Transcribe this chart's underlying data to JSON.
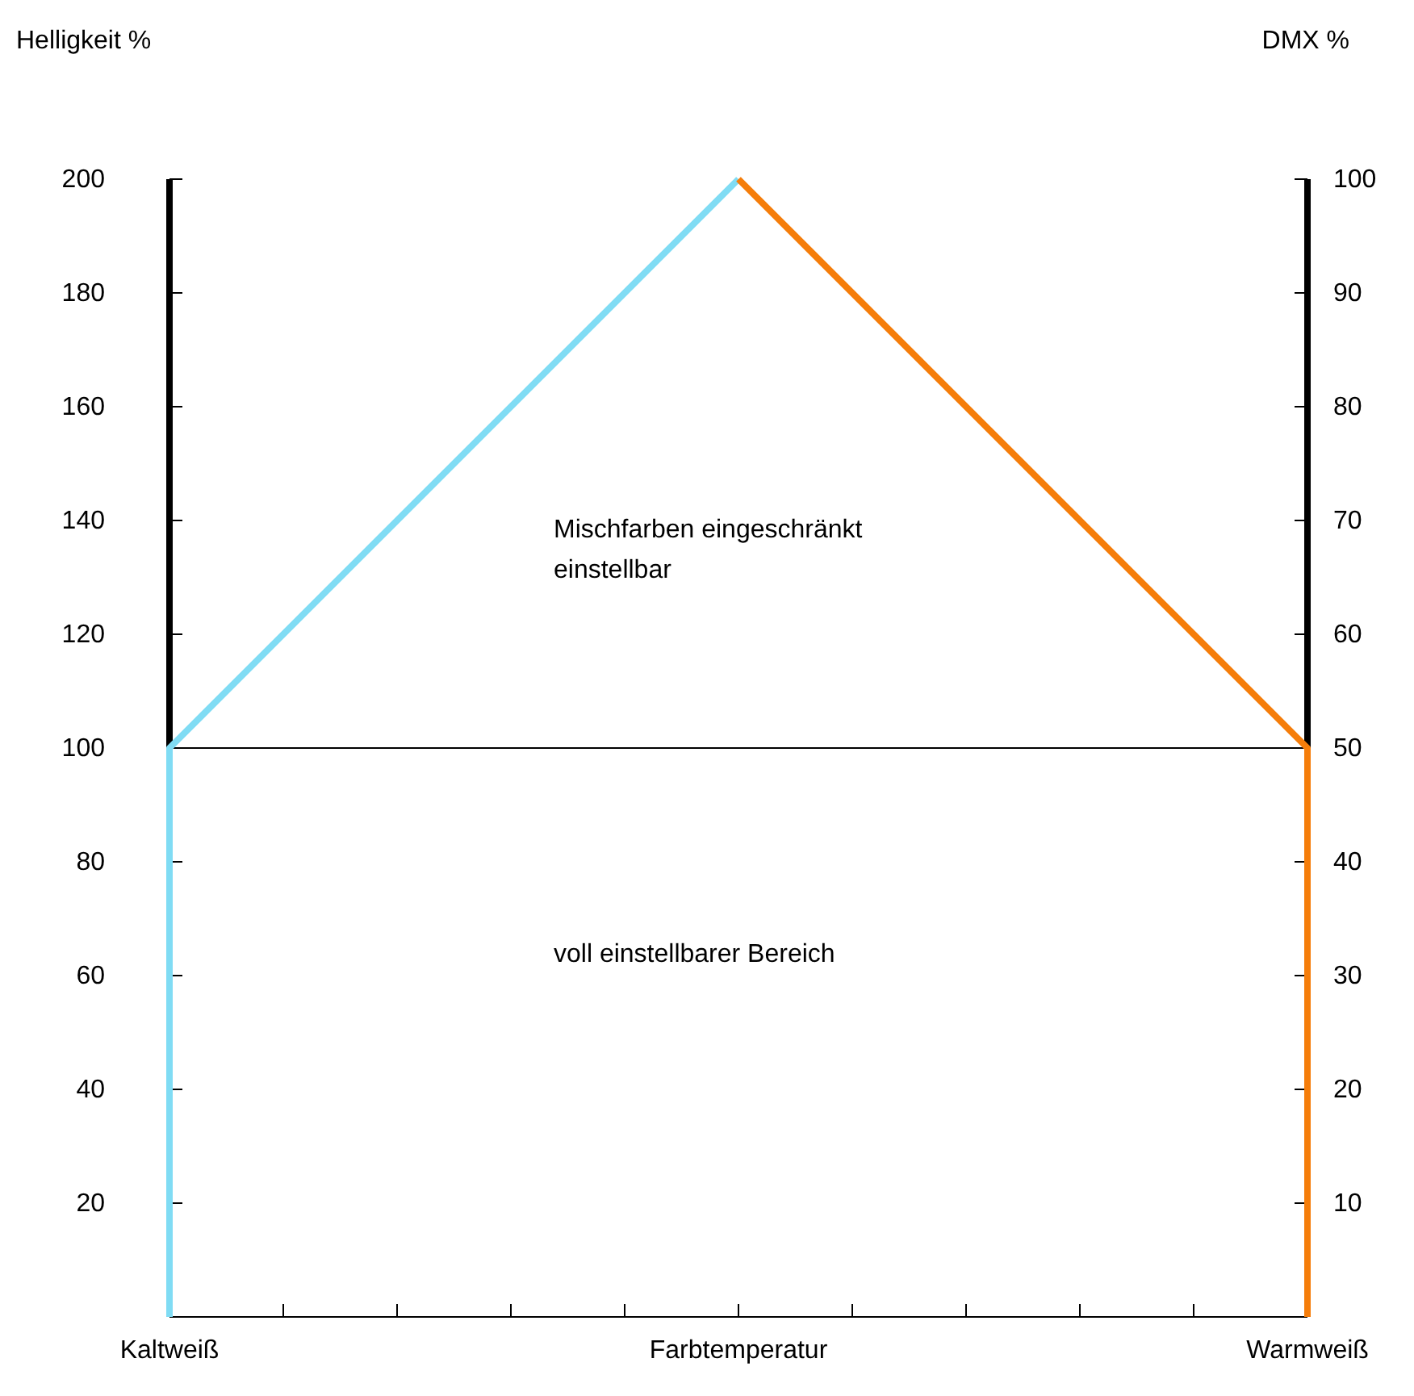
{
  "chart_data": {
    "type": "line",
    "ylabel": "Helligkeit %",
    "y2label": "DMX %",
    "categories": [
      "Kaltweiß",
      null,
      null,
      null,
      null,
      "Farbtemperatur",
      null,
      null,
      null,
      null,
      "Warmweiß"
    ],
    "ylim": [
      0,
      200
    ],
    "yticks": [
      20,
      40,
      60,
      80,
      100,
      120,
      140,
      160,
      180,
      200
    ],
    "y2lim": [
      0,
      100
    ],
    "y2ticks": [
      10,
      20,
      30,
      40,
      50,
      60,
      70,
      80,
      90,
      100
    ],
    "series": [
      {
        "color": "#80dcf4",
        "x": [
          "Kaltweiß",
          "Kaltweiß",
          "Farbtemperatur"
        ],
        "values": [
          0,
          100,
          200
        ]
      },
      {
        "color": "#f57d0a",
        "x": [
          "Farbtemperatur",
          "Warmweiß",
          "Warmweiß"
        ],
        "values": [
          200,
          100,
          0
        ]
      }
    ],
    "ref_lines": [
      {
        "axis": "y",
        "value": 100,
        "color": "#000000"
      }
    ],
    "annotations": [
      "Mischfarben eingeschränkt\neinstellbar",
      "voll einstellbarer Bereich"
    ],
    "grid": false,
    "marker": "none",
    "line_style": "solid"
  }
}
